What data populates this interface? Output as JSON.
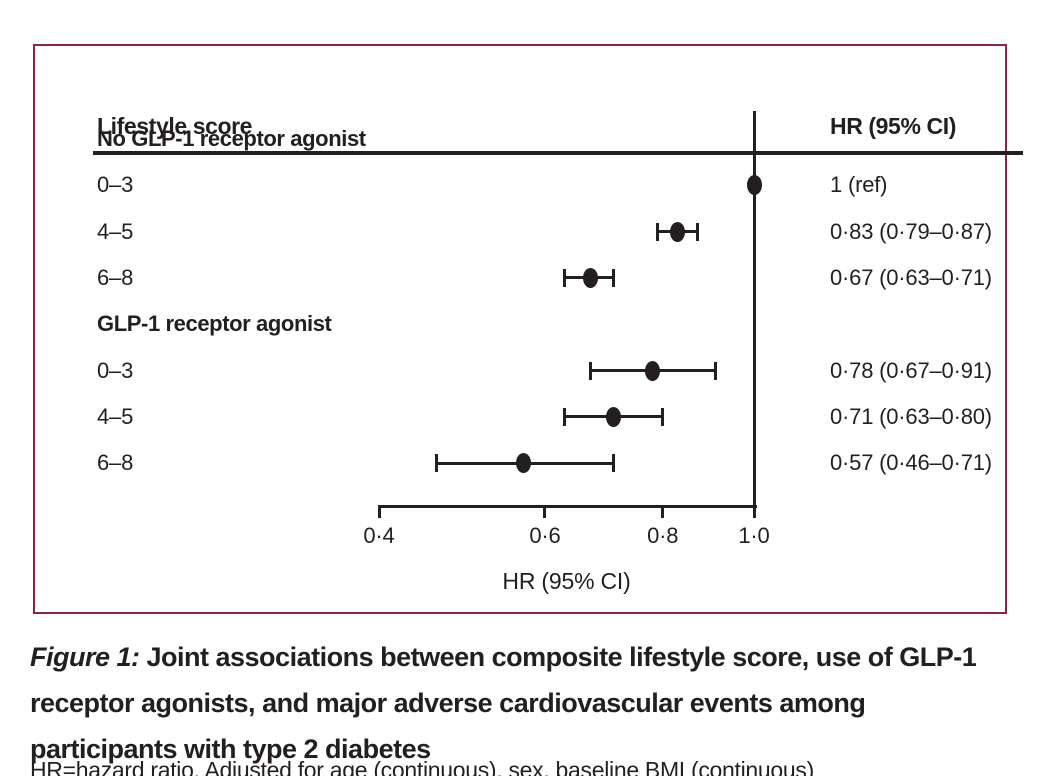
{
  "figure": {
    "panel_header": {
      "left": "Lifestyle score",
      "right": "HR (95% CI)"
    },
    "caption": {
      "prefix": "Figure 1:",
      "line1_rest": " Joint associations between composite lifestyle score, use of GLP-1",
      "line2": "receptor agonists, and major adverse cardiovascular events among",
      "line3": "participants with type 2 diabetes"
    },
    "footnote": "HR=hazard ratio. Adjusted for age (continuous), sex, baseline BMI (continuous)"
  },
  "colors": {
    "panel_border": "#8a2346",
    "ink": "#231f20"
  },
  "chart_data": {
    "type": "forest",
    "title": "",
    "xlabel": "HR (95% CI)",
    "x_scale": "log",
    "xlim": [
      0.4,
      1.0
    ],
    "x_ticks": [
      0.4,
      0.6,
      0.8,
      1.0
    ],
    "x_tick_labels": [
      "0·4",
      "0·6",
      "0·8",
      "1·0"
    ],
    "ref_line": 1.0,
    "column_left_header": "Lifestyle score",
    "column_right_header": "HR (95% CI)",
    "groups": [
      {
        "label": "No GLP-1 receptor agonist",
        "rows": [
          {
            "label": "0–3",
            "hr": 1.0,
            "ci_low": null,
            "ci_high": null,
            "hr_text": "1 (ref)",
            "is_ref": true
          },
          {
            "label": "4–5",
            "hr": 0.83,
            "ci_low": 0.79,
            "ci_high": 0.87,
            "hr_text": "0·83 (0·79–0·87)",
            "is_ref": false
          },
          {
            "label": "6–8",
            "hr": 0.67,
            "ci_low": 0.63,
            "ci_high": 0.71,
            "hr_text": "0·67 (0·63–0·71)",
            "is_ref": false
          }
        ]
      },
      {
        "label": "GLP-1 receptor agonist",
        "rows": [
          {
            "label": "0–3",
            "hr": 0.78,
            "ci_low": 0.67,
            "ci_high": 0.91,
            "hr_text": "0·78 (0·67–0·91)",
            "is_ref": false
          },
          {
            "label": "4–5",
            "hr": 0.71,
            "ci_low": 0.63,
            "ci_high": 0.8,
            "hr_text": "0·71 (0·63–0·80)",
            "is_ref": false
          },
          {
            "label": "6–8",
            "hr": 0.57,
            "ci_low": 0.46,
            "ci_high": 0.71,
            "hr_text": "0·57 (0·46–0·71)",
            "is_ref": false
          }
        ]
      }
    ]
  }
}
